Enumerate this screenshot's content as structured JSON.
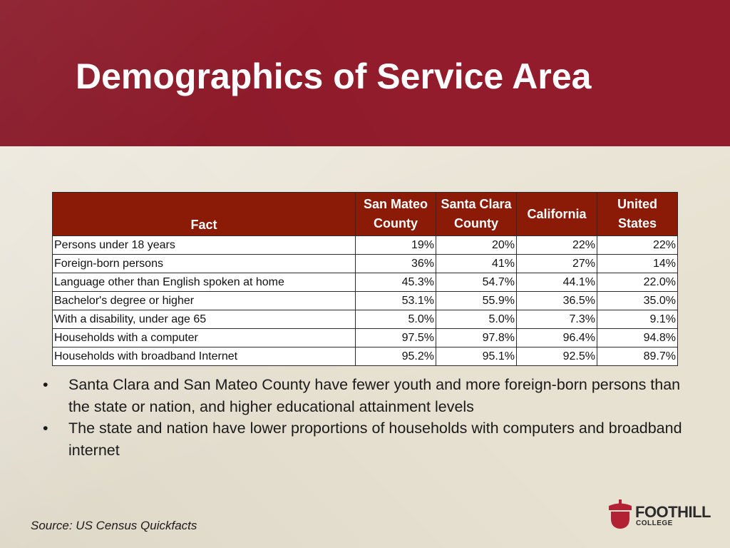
{
  "slide": {
    "title": "Demographics of Service Area",
    "source": "Source: US Census Quickfacts"
  },
  "table": {
    "columns": {
      "fact": "Fact",
      "san_mateo": [
        "San Mateo",
        "County"
      ],
      "santa_clara": [
        "Santa Clara",
        "County"
      ],
      "california": [
        "California"
      ],
      "united_states": [
        "United",
        "States"
      ]
    },
    "rows": [
      {
        "fact": "Persons under 18 years",
        "values": [
          "19%",
          "20%",
          "22%",
          "22%"
        ]
      },
      {
        "fact": "Foreign-born persons",
        "values": [
          "36%",
          "41%",
          "27%",
          "14%"
        ]
      },
      {
        "fact": "Language other than English spoken at home",
        "values": [
          "45.3%",
          "54.7%",
          "44.1%",
          "22.0%"
        ]
      },
      {
        "fact": "Bachelor's degree or higher",
        "values": [
          "53.1%",
          "55.9%",
          "36.5%",
          "35.0%"
        ]
      },
      {
        "fact": "With a disability, under age 65",
        "values": [
          "5.0%",
          "5.0%",
          "7.3%",
          "9.1%"
        ]
      },
      {
        "fact": "Households with a computer",
        "values": [
          "97.5%",
          "97.8%",
          "96.4%",
          "94.8%"
        ]
      },
      {
        "fact": "Households with broadband Internet",
        "values": [
          "95.2%",
          "95.1%",
          "92.5%",
          "89.7%"
        ]
      }
    ]
  },
  "bullets": {
    "marker": "•",
    "items": [
      "Santa Clara and San Mateo County have fewer youth and more foreign-born persons than the state or nation, and higher educational attainment levels",
      "The state and nation have lower proportions of households with computers and broadband internet"
    ]
  },
  "logo": {
    "name": "FOOTHILL",
    "sub": "COLLEGE",
    "color": "#b22234",
    "icon": "acorn-icon"
  }
}
